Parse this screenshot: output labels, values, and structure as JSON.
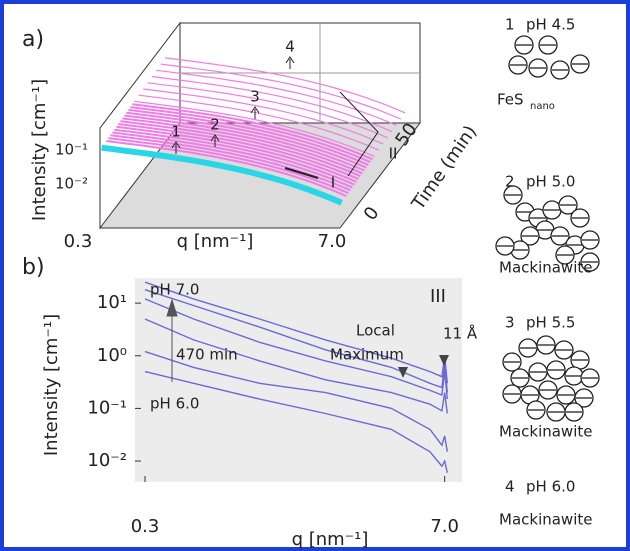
{
  "panel_a": {
    "label": "a)",
    "y_label": "Intensity [cm⁻¹]",
    "y_tick_labels": [
      "10⁻¹",
      "10⁻²"
    ],
    "x_label": "q [nm⁻¹]",
    "x_tick_labels": [
      "0.3",
      "7.0"
    ],
    "time_label": "Time (min)",
    "time_tick_labels": [
      "0",
      "50"
    ],
    "markers": [
      "1",
      "2",
      "3",
      "4"
    ],
    "regions": [
      "I",
      "II"
    ]
  },
  "chart_data": {
    "type": "line",
    "panel_label": "b)",
    "y_label": "Intensity [cm⁻¹]",
    "x_label": "q [nm⁻¹]",
    "log_x": true,
    "log_y": true,
    "background": "#ececec",
    "xlim": [
      0.27,
      8.4
    ],
    "ylim": [
      0.004,
      30
    ],
    "xticks": [
      0.3,
      {
        "value": 7,
        "label": "7.0"
      }
    ],
    "yticks": [
      {
        "value": 10,
        "label": "10¹"
      },
      {
        "value": 1,
        "label": "10⁰"
      },
      {
        "value": 0.1,
        "label": "10⁻¹"
      },
      {
        "value": 0.01,
        "label": "10⁻²"
      }
    ],
    "x": [
      0.3,
      0.5,
      1,
      2,
      4,
      6,
      6.8,
      7.0,
      7.2
    ],
    "series": [
      {
        "color": "#6a6ad8",
        "values": [
          25,
          12,
          5,
          2,
          0.9,
          0.5,
          0.4,
          1.0,
          0.3
        ]
      },
      {
        "color": "#6a6ad8",
        "values": [
          18,
          9,
          3.5,
          1.3,
          0.6,
          0.3,
          0.25,
          0.7,
          0.2
        ]
      },
      {
        "color": "#6a6ad8",
        "values": [
          12,
          5,
          1.8,
          0.8,
          0.4,
          0.22,
          0.18,
          0.5,
          0.15
        ]
      },
      {
        "color": "#6a6ad8",
        "values": [
          5,
          2,
          0.8,
          0.35,
          0.2,
          0.12,
          0.09,
          0.2,
          0.08
        ]
      },
      {
        "color": "#6a6ad8",
        "values": [
          1.2,
          0.6,
          0.3,
          0.2,
          0.1,
          0.04,
          0.02,
          0.03,
          0.015
        ]
      },
      {
        "color": "#6a6ad8",
        "values": [
          0.5,
          0.3,
          0.15,
          0.08,
          0.04,
          0.015,
          0.008,
          0.01,
          0.006
        ]
      }
    ],
    "annotations": [
      "pH 7.0",
      "470 min",
      "pH 6.0",
      "III",
      "Local",
      "Maximum",
      "11 Å"
    ]
  },
  "schematic": [
    {
      "number": "1",
      "label": "pH 4.5",
      "caption": "FeS",
      "subscript": "nano"
    },
    {
      "number": "2",
      "label": "pH 5.0",
      "caption": "Mackinawite"
    },
    {
      "number": "3",
      "label": "pH 5.5",
      "caption": "Mackinawite"
    },
    {
      "number": "4",
      "label": "pH 6.0",
      "caption": "Mackinawite"
    }
  ]
}
